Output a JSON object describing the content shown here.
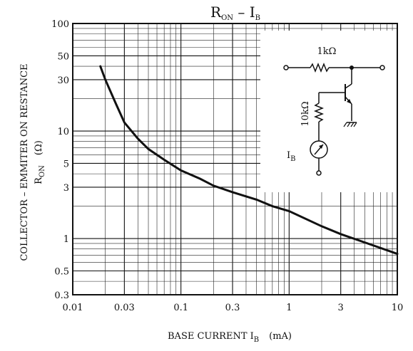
{
  "chart_data": {
    "type": "line",
    "title_main": "R",
    "title_main_sub": "ON",
    "title_sep": " – ",
    "title_second": "I",
    "title_second_sub": "B",
    "xlabel_main": "BASE CURRENT  I",
    "xlabel_sub": "B",
    "xlabel_unit": "(mA)",
    "ylabel_line1": "COLLECTOR – EMMITER ON RESTANCE",
    "ylabel_line2_main": "R",
    "ylabel_line2_sub": "ON",
    "ylabel_unit": "(Ω)",
    "x_scale": "log",
    "y_scale": "log",
    "xlim": [
      0.01,
      10
    ],
    "ylim": [
      0.3,
      100
    ],
    "grid": true,
    "x_ticks": [
      {
        "value": 0.01,
        "label": "0.01"
      },
      {
        "value": 0.03,
        "label": "0.03"
      },
      {
        "value": 0.1,
        "label": "0.1"
      },
      {
        "value": 0.3,
        "label": "0.3"
      },
      {
        "value": 1,
        "label": "1"
      },
      {
        "value": 3,
        "label": "3"
      },
      {
        "value": 10,
        "label": "10"
      }
    ],
    "y_ticks": [
      {
        "value": 100,
        "label": "100"
      },
      {
        "value": 50,
        "label": "50"
      },
      {
        "value": 30,
        "label": "30"
      },
      {
        "value": 10,
        "label": "10"
      },
      {
        "value": 5,
        "label": "5"
      },
      {
        "value": 3,
        "label": "3"
      },
      {
        "value": 1,
        "label": "1"
      },
      {
        "value": 0.5,
        "label": "0.5"
      },
      {
        "value": 0.3,
        "label": "0.3"
      }
    ],
    "series": [
      {
        "x": [
          0.018,
          0.02,
          0.025,
          0.03,
          0.04,
          0.05,
          0.07,
          0.1,
          0.15,
          0.2,
          0.3,
          0.5,
          0.7,
          1,
          2,
          3,
          5,
          10
        ],
        "y": [
          40,
          30,
          18,
          12,
          8.5,
          6.8,
          5.4,
          4.3,
          3.6,
          3.1,
          2.7,
          2.3,
          2.0,
          1.8,
          1.3,
          1.1,
          0.92,
          0.72
        ]
      }
    ],
    "inset_circuit": {
      "resistor_top_label": "1kΩ",
      "resistor_base_label": "10kΩ",
      "meter_label_main": "I",
      "meter_label_sub": "B"
    }
  }
}
